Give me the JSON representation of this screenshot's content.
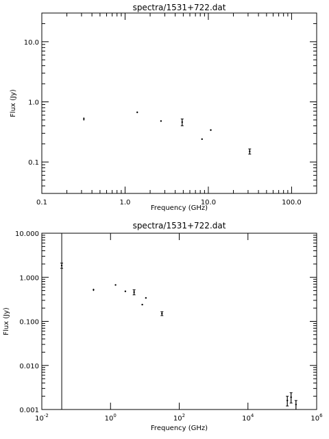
{
  "chart_data": [
    {
      "type": "scatter",
      "title": "spectra/1531+722.dat",
      "xlabel": "Frequency (GHz)",
      "ylabel": "Flux (Jy)",
      "xscale": "log",
      "yscale": "log",
      "xlim": [
        0.1,
        200
      ],
      "ylim": [
        0.03,
        30
      ],
      "xticks": [
        0.1,
        1,
        10,
        100
      ],
      "xtick_labels": [
        "0.1",
        "1.0",
        "10.0",
        "100.0"
      ],
      "yticks": [
        0.1,
        1,
        10
      ],
      "ytick_labels": [
        "0.1",
        "1.0",
        "10.0"
      ],
      "series": [
        {
          "points": [
            {
              "x": 0.32,
              "y": 0.52,
              "err": 0.03
            },
            {
              "x": 1.4,
              "y": 0.67,
              "err": 0.01
            },
            {
              "x": 2.7,
              "y": 0.48,
              "err": 0.01
            },
            {
              "x": 4.85,
              "y": 0.46,
              "err": 0.06
            },
            {
              "x": 8.4,
              "y": 0.24,
              "err": 0.005
            },
            {
              "x": 10.7,
              "y": 0.34,
              "err": 0.01
            },
            {
              "x": 31.4,
              "y": 0.15,
              "err": 0.015
            }
          ]
        }
      ]
    },
    {
      "type": "scatter",
      "title": "spectra/1531+722.dat",
      "xlabel": "Frequency (GHz)",
      "ylabel": "Flux (Jy)",
      "xscale": "log",
      "yscale": "log",
      "xlim": [
        0.01,
        1000000
      ],
      "ylim": [
        0.001,
        10
      ],
      "xticks": [
        0.01,
        1,
        100,
        10000,
        1000000
      ],
      "xtick_labels": [
        "10-2",
        "100",
        "102",
        "104",
        "106"
      ],
      "yticks": [
        0.001,
        0.01,
        0.1,
        1,
        10
      ],
      "ytick_labels": [
        "0.001",
        "0.010",
        "0.100",
        "1.000",
        "10.000"
      ],
      "series": [
        {
          "points": [
            {
              "x": 0.038,
              "y": 1.85,
              "err": 0.25,
              "note": "upper error extends past top"
            },
            {
              "x": 0.32,
              "y": 0.52,
              "err": 0.03
            },
            {
              "x": 1.4,
              "y": 0.67,
              "err": 0.01
            },
            {
              "x": 2.7,
              "y": 0.48,
              "err": 0.01
            },
            {
              "x": 4.85,
              "y": 0.46,
              "err": 0.06
            },
            {
              "x": 8.4,
              "y": 0.24,
              "err": 0.005
            },
            {
              "x": 10.7,
              "y": 0.34,
              "err": 0.01
            },
            {
              "x": 31.4,
              "y": 0.15,
              "err": 0.015
            },
            {
              "x": 140000,
              "y": 0.0016,
              "err": 0.0004
            },
            {
              "x": 180000,
              "y": 0.0019,
              "err": 0.0005
            },
            {
              "x": 250000,
              "y": 0.0013,
              "err": 0.0003
            }
          ],
          "full_height_errorbar": {
            "x": 0.038
          }
        }
      ]
    }
  ]
}
